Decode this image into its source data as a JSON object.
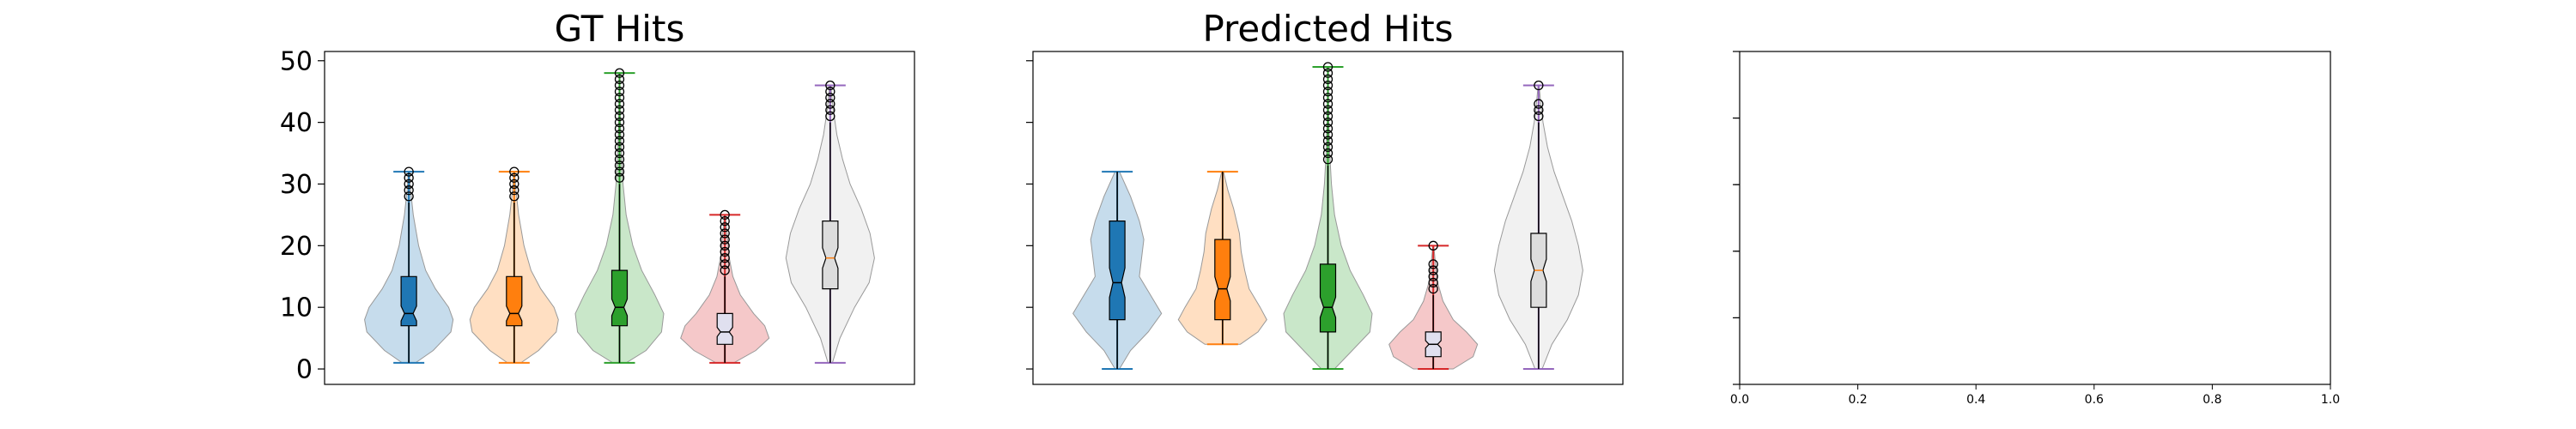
{
  "chart_data": [
    {
      "type": "violin",
      "title": "GT Hits",
      "ylim": [
        -2.5,
        51.5
      ],
      "yticks": [
        0,
        10,
        20,
        30,
        40,
        50
      ],
      "ytick_labels": [
        "0",
        "10",
        "20",
        "30",
        "40",
        "50"
      ],
      "grid": false,
      "series": [
        {
          "color": "#1f77b4",
          "min": 1,
          "q1": 7,
          "median": 9,
          "q3": 15,
          "max": 32,
          "whisker_high": 27,
          "outliers": [
            28,
            29,
            30,
            31,
            32
          ],
          "density": [
            [
              1,
              0.15
            ],
            [
              3,
              0.55
            ],
            [
              6,
              0.95
            ],
            [
              8,
              1.0
            ],
            [
              10,
              0.9
            ],
            [
              13,
              0.6
            ],
            [
              16,
              0.38
            ],
            [
              20,
              0.22
            ],
            [
              25,
              0.1
            ],
            [
              29,
              0.04
            ],
            [
              32,
              0.01
            ]
          ]
        },
        {
          "color": "#ff7f0e",
          "min": 1,
          "q1": 7,
          "median": 9,
          "q3": 15,
          "max": 32,
          "whisker_high": 27,
          "outliers": [
            28,
            29,
            30,
            31,
            32
          ],
          "density": [
            [
              1,
              0.15
            ],
            [
              3,
              0.55
            ],
            [
              6,
              0.95
            ],
            [
              8,
              1.0
            ],
            [
              10,
              0.9
            ],
            [
              13,
              0.6
            ],
            [
              16,
              0.38
            ],
            [
              20,
              0.22
            ],
            [
              25,
              0.1
            ],
            [
              29,
              0.04
            ],
            [
              32,
              0.01
            ]
          ]
        },
        {
          "color": "#2ca02c",
          "min": 1,
          "q1": 7,
          "median": 10,
          "q3": 16,
          "max": 48,
          "whisker_high": 30,
          "outliers": [
            31,
            32,
            33,
            34,
            35,
            36,
            37,
            38,
            39,
            40,
            41,
            42,
            43,
            44,
            45,
            46,
            47,
            48
          ],
          "density": [
            [
              1,
              0.15
            ],
            [
              3,
              0.6
            ],
            [
              6,
              0.95
            ],
            [
              9,
              1.0
            ],
            [
              12,
              0.8
            ],
            [
              16,
              0.5
            ],
            [
              20,
              0.3
            ],
            [
              25,
              0.15
            ],
            [
              30,
              0.08
            ],
            [
              35,
              0.04
            ],
            [
              40,
              0.02
            ],
            [
              45,
              0.01
            ],
            [
              48,
              0.005
            ]
          ]
        },
        {
          "color": "#d62728",
          "box_color": "#e0e0ef",
          "min": 1,
          "q1": 4,
          "median": 6,
          "q3": 9,
          "max": 25,
          "whisker_high": 15,
          "outliers": [
            16,
            17,
            18,
            19,
            20,
            21,
            22,
            23,
            24,
            25
          ],
          "density": [
            [
              1,
              0.2
            ],
            [
              3,
              0.7
            ],
            [
              5,
              1.0
            ],
            [
              7,
              0.9
            ],
            [
              9,
              0.65
            ],
            [
              12,
              0.35
            ],
            [
              15,
              0.18
            ],
            [
              18,
              0.1
            ],
            [
              22,
              0.05
            ],
            [
              25,
              0.01
            ]
          ]
        },
        {
          "color": "#9467bd",
          "violin_color": "#eeeeee",
          "box_color": "#dddddd",
          "median_color": "#ff7f0e",
          "min": 1,
          "q1": 13,
          "median": 18,
          "q3": 24,
          "max": 46,
          "whisker_high": 40,
          "outliers": [
            41,
            42,
            43,
            44,
            45,
            46
          ],
          "density": [
            [
              1,
              0.05
            ],
            [
              5,
              0.22
            ],
            [
              10,
              0.55
            ],
            [
              14,
              0.88
            ],
            [
              18,
              1.0
            ],
            [
              22,
              0.9
            ],
            [
              26,
              0.7
            ],
            [
              30,
              0.45
            ],
            [
              34,
              0.28
            ],
            [
              38,
              0.15
            ],
            [
              42,
              0.07
            ],
            [
              46,
              0.01
            ]
          ]
        }
      ]
    },
    {
      "type": "violin",
      "title": "Predicted Hits",
      "ylim": [
        -2.5,
        51.5
      ],
      "yticks": [
        0,
        10,
        20,
        30,
        40,
        50
      ],
      "ytick_labels": [
        "",
        "",
        "",
        "",
        "",
        ""
      ],
      "grid": false,
      "series": [
        {
          "color": "#1f77b4",
          "min": 0,
          "q1": 8,
          "median": 14,
          "q3": 24,
          "max": 32,
          "whisker_high": 32,
          "outliers": [],
          "density": [
            [
              0,
              0.05
            ],
            [
              3,
              0.3
            ],
            [
              6,
              0.7
            ],
            [
              9,
              1.0
            ],
            [
              12,
              0.75
            ],
            [
              15,
              0.5
            ],
            [
              18,
              0.55
            ],
            [
              21,
              0.6
            ],
            [
              24,
              0.5
            ],
            [
              28,
              0.3
            ],
            [
              32,
              0.05
            ]
          ]
        },
        {
          "color": "#ff7f0e",
          "min": 4,
          "q1": 8,
          "median": 13,
          "q3": 21,
          "max": 32,
          "whisker_high": 32,
          "outliers": [],
          "density": [
            [
              4,
              0.4
            ],
            [
              6,
              0.8
            ],
            [
              8,
              1.0
            ],
            [
              10,
              0.85
            ],
            [
              13,
              0.6
            ],
            [
              16,
              0.5
            ],
            [
              19,
              0.42
            ],
            [
              22,
              0.38
            ],
            [
              26,
              0.25
            ],
            [
              29,
              0.12
            ],
            [
              32,
              0.02
            ]
          ]
        },
        {
          "color": "#2ca02c",
          "min": 0,
          "q1": 6,
          "median": 10,
          "q3": 17,
          "max": 49,
          "whisker_high": 33,
          "outliers": [
            34,
            35,
            36,
            37,
            38,
            39,
            40,
            41,
            42,
            43,
            44,
            45,
            46,
            47,
            48,
            49
          ],
          "density": [
            [
              0,
              0.15
            ],
            [
              3,
              0.55
            ],
            [
              6,
              0.95
            ],
            [
              9,
              1.0
            ],
            [
              12,
              0.8
            ],
            [
              16,
              0.5
            ],
            [
              20,
              0.3
            ],
            [
              25,
              0.15
            ],
            [
              30,
              0.08
            ],
            [
              35,
              0.04
            ],
            [
              40,
              0.02
            ],
            [
              45,
              0.01
            ],
            [
              49,
              0.005
            ]
          ]
        },
        {
          "color": "#d62728",
          "box_color": "#e0e0ef",
          "min": 0,
          "q1": 2,
          "median": 4,
          "q3": 6,
          "max": 20,
          "whisker_high": 12,
          "outliers": [
            13,
            14,
            15,
            16,
            17,
            20
          ],
          "density": [
            [
              0,
              0.45
            ],
            [
              2,
              0.9
            ],
            [
              4,
              1.0
            ],
            [
              6,
              0.75
            ],
            [
              8,
              0.45
            ],
            [
              11,
              0.22
            ],
            [
              14,
              0.1
            ],
            [
              17,
              0.05
            ],
            [
              20,
              0.01
            ]
          ]
        },
        {
          "color": "#9467bd",
          "violin_color": "#eeeeee",
          "box_color": "#dddddd",
          "median_color": "#ff7f0e",
          "min": 0,
          "q1": 10,
          "median": 16,
          "q3": 22,
          "max": 46,
          "whisker_high": 40,
          "outliers": [
            41,
            42,
            43,
            46
          ],
          "density": [
            [
              0,
              0.08
            ],
            [
              4,
              0.3
            ],
            [
              8,
              0.65
            ],
            [
              12,
              0.9
            ],
            [
              16,
              1.0
            ],
            [
              20,
              0.9
            ],
            [
              24,
              0.75
            ],
            [
              28,
              0.55
            ],
            [
              32,
              0.35
            ],
            [
              36,
              0.2
            ],
            [
              40,
              0.1
            ],
            [
              43,
              0.05
            ],
            [
              46,
              0.01
            ]
          ]
        }
      ]
    },
    {
      "type": "empty",
      "title": "",
      "xlim": [
        0,
        1
      ],
      "ylim": [
        0,
        1
      ],
      "xticks": [
        0,
        0.2,
        0.4,
        0.6,
        0.8,
        1.0
      ],
      "xtick_labels": [
        "0.0",
        "0.2",
        "0.4",
        "0.6",
        "0.8",
        "1.0"
      ],
      "yticks": [
        0,
        0.2,
        0.4,
        0.6,
        0.8,
        1.0
      ],
      "ytick_labels": [
        "",
        "",
        "",
        "",
        "",
        ""
      ],
      "grid": false,
      "series": []
    }
  ]
}
